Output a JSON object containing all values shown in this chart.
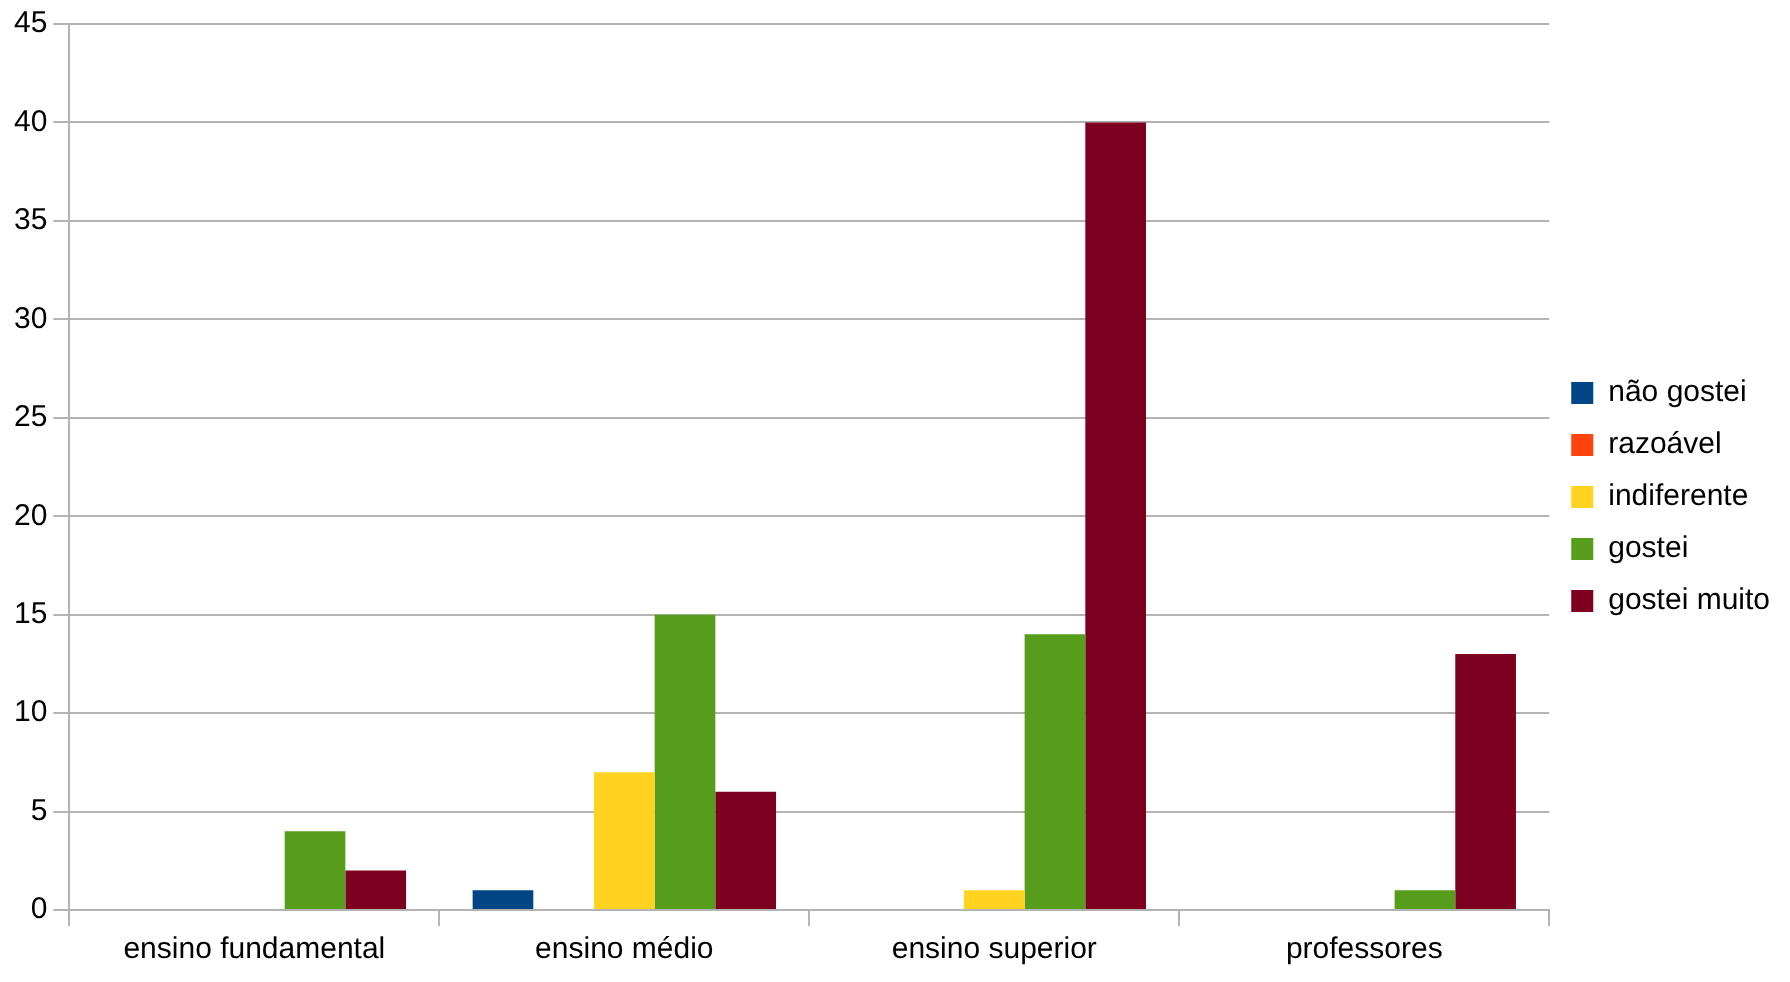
{
  "chart_data": {
    "type": "bar",
    "categories": [
      "ensino fundamental",
      "ensino médio",
      "ensino superior",
      "professores"
    ],
    "series": [
      {
        "name": "não gostei",
        "color": "#004586",
        "values": [
          0,
          1,
          0,
          0
        ]
      },
      {
        "name": "razoável",
        "color": "#ff420e",
        "values": [
          0,
          0,
          0,
          0
        ]
      },
      {
        "name": "indiferente",
        "color": "#ffd320",
        "values": [
          0,
          7,
          1,
          0
        ]
      },
      {
        "name": "gostei",
        "color": "#579d1c",
        "values": [
          4,
          15,
          14,
          1
        ]
      },
      {
        "name": "gostei muito",
        "color": "#7e0021",
        "values": [
          2,
          6,
          40,
          13
        ]
      }
    ],
    "ylim": [
      0,
      45
    ],
    "yticks": [
      0,
      5,
      10,
      15,
      20,
      25,
      30,
      35,
      40,
      45
    ],
    "grid": "y",
    "legend": "right"
  }
}
